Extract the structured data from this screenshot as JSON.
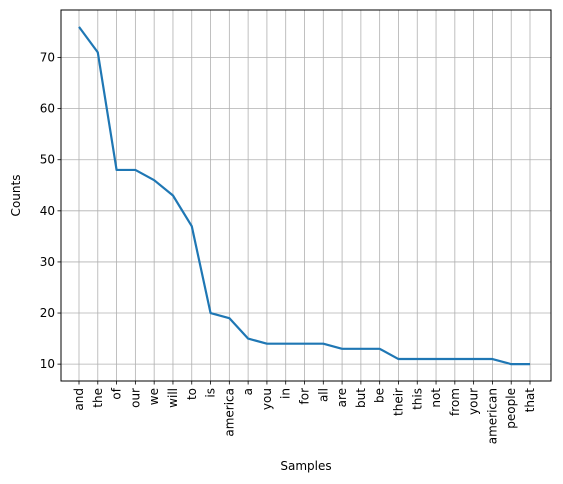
{
  "chart_data": {
    "type": "line",
    "title": "",
    "xlabel": "Samples",
    "ylabel": "Counts",
    "categories": [
      "and",
      "the",
      "of",
      "our",
      "we",
      "will",
      "to",
      "is",
      "america",
      "a",
      "you",
      "in",
      "for",
      "all",
      "are",
      "but",
      "be",
      "their",
      "this",
      "not",
      "from",
      "your",
      "american",
      "people",
      "that"
    ],
    "values": [
      76,
      71,
      48,
      48,
      46,
      43,
      37,
      20,
      19,
      15,
      14,
      14,
      14,
      14,
      13,
      13,
      13,
      11,
      11,
      11,
      11,
      11,
      11,
      10,
      10
    ],
    "yticks": [
      10,
      20,
      30,
      40,
      50,
      60,
      70
    ],
    "ylim": [
      6.7,
      79.3
    ],
    "grid": true,
    "line_color": "#1f77b4",
    "grid_color": "#b0b0b0"
  }
}
